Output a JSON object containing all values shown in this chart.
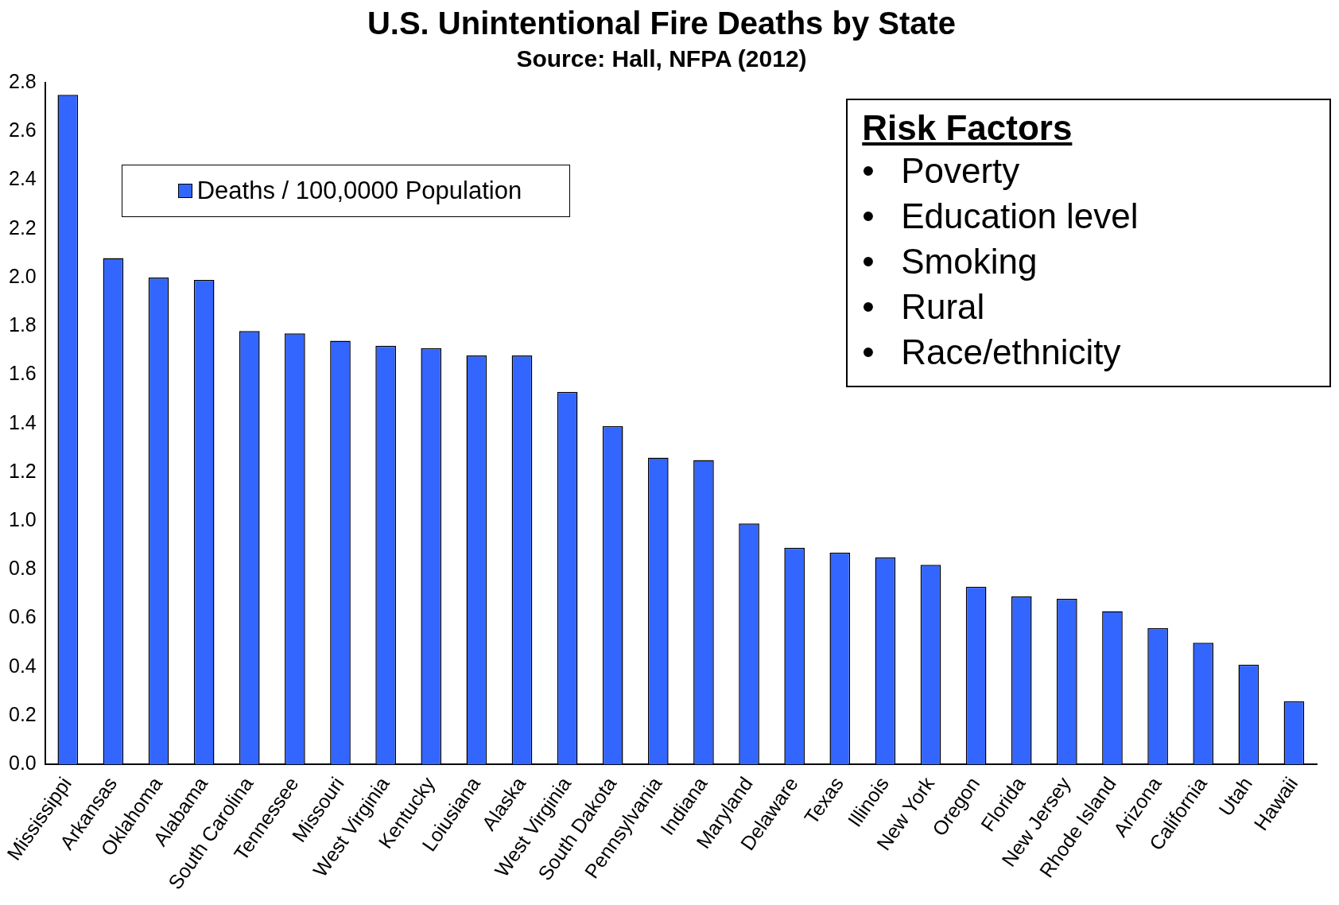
{
  "chart_data": {
    "type": "bar",
    "title": "U.S. Unintentional Fire Deaths by State",
    "subtitle": "Source: Hall, NFPA (2012)",
    "categories": [
      "Mississippi",
      "Arkansas",
      "Oklahoma",
      "Alabama",
      "South Carolina",
      "Tennessee",
      "Missouri",
      "West Virginia",
      "Kentucky",
      "Loiusiana",
      "Alaska",
      "West Virginia",
      "South Dakota",
      "Pennsylvania",
      "Indiana",
      "Maryland",
      "Delaware",
      "Texas",
      "Illinois",
      "New York",
      "Oregon",
      "Florida",
      "New Jersey",
      "Rhode Island",
      "Arizona",
      "California",
      "Utah",
      "Hawaii"
    ],
    "series": [
      {
        "name": "Deaths / 100,0000 Population",
        "color": "#3366ff",
        "values": [
          2.75,
          2.08,
          2.0,
          1.99,
          1.78,
          1.77,
          1.74,
          1.72,
          1.71,
          1.68,
          1.68,
          1.53,
          1.39,
          1.26,
          1.25,
          0.99,
          0.89,
          0.87,
          0.85,
          0.82,
          0.73,
          0.69,
          0.68,
          0.63,
          0.56,
          0.5,
          0.41,
          0.26
        ]
      }
    ],
    "ylim": [
      0,
      2.8
    ],
    "yticks": [
      {
        "value": 0,
        "label": "0.0"
      },
      {
        "value": 0.2,
        "label": "0.2"
      },
      {
        "value": 0.4,
        "label": "0.4"
      },
      {
        "value": 0.6,
        "label": "0.6"
      },
      {
        "value": 0.8,
        "label": "0.8"
      },
      {
        "value": 1,
        "label": "1.0"
      },
      {
        "value": 1.2,
        "label": "1.2"
      },
      {
        "value": 1.4,
        "label": "1.4"
      },
      {
        "value": 1.6,
        "label": "1.6"
      },
      {
        "value": 1.8,
        "label": "1.8"
      },
      {
        "value": 2,
        "label": "2.0"
      },
      {
        "value": 2.2,
        "label": "2.2"
      },
      {
        "value": 2.4,
        "label": "2.4"
      },
      {
        "value": 2.6,
        "label": "2.6"
      },
      {
        "value": 2.8,
        "label": "2.8"
      }
    ],
    "grid": false,
    "legend": "top left",
    "annotations": [
      "Risk Factors",
      "•\tPoverty",
      "•\tEducation level",
      "•\tSmoking",
      "•\tRural",
      "•\tRace/ethnicity"
    ]
  }
}
